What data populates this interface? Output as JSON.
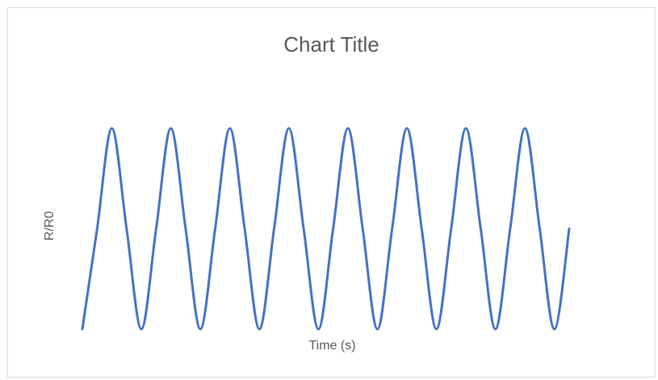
{
  "chart_data": {
    "type": "line",
    "title": "Chart Title",
    "xlabel": "Time (s)",
    "ylabel": "R/R0",
    "grid": false,
    "legend": "none",
    "axis_ticks_shown": false,
    "series": [
      {
        "color": "#4472c4",
        "x": [
          0,
          0.25,
          0.5,
          0.75,
          1,
          1.25,
          1.5,
          1.75,
          2,
          2.25,
          2.5,
          2.75,
          3,
          3.25,
          3.5,
          3.75,
          4,
          4.25,
          4.5,
          4.75,
          5,
          5.25,
          5.5,
          5.75,
          6,
          6.25,
          6.5,
          6.75,
          7,
          7.25,
          7.5,
          7.75,
          8,
          8.25
        ],
        "y": [
          0,
          0.5,
          1,
          0.5,
          0,
          0.5,
          1,
          0.5,
          0,
          0.5,
          1,
          0.5,
          0,
          0.5,
          1,
          0.5,
          0,
          0.5,
          1,
          0.5,
          0,
          0.5,
          1,
          0.5,
          0,
          0.5,
          1,
          0.5,
          0,
          0.5,
          1,
          0.5,
          0,
          0.5
        ]
      }
    ]
  }
}
